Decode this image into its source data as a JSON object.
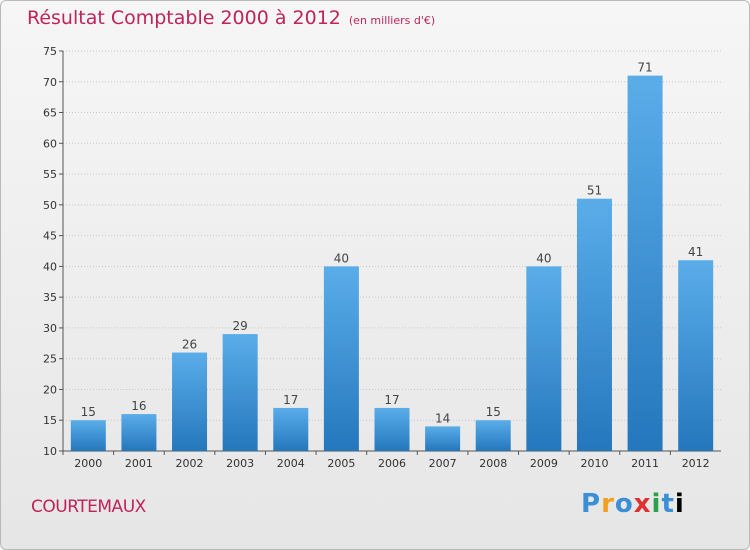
{
  "title": "Résultat Comptable 2000 à 2012",
  "unit": "(en milliers d'€)",
  "city": "COURTEMAUX",
  "logo": {
    "letters": [
      "P",
      "r",
      "o",
      "x",
      "i",
      "t",
      "i"
    ]
  },
  "colors": {
    "bar_light": "#5aade9",
    "bar_dark": "#2577bd",
    "title": "#c0235a",
    "grid": "#c8c8c8"
  },
  "chart_data": {
    "type": "bar",
    "title": "Résultat Comptable 2000 à 2012",
    "subtitle": "(en milliers d'€)",
    "xlabel": "",
    "ylabel": "",
    "categories": [
      "2000",
      "2001",
      "2002",
      "2003",
      "2004",
      "2005",
      "2006",
      "2007",
      "2008",
      "2009",
      "2010",
      "2011",
      "2012"
    ],
    "values": [
      15,
      16,
      26,
      29,
      17,
      40,
      17,
      14,
      15,
      40,
      51,
      71,
      41
    ],
    "ylim": [
      10,
      75
    ],
    "yticks": [
      10,
      15,
      20,
      25,
      30,
      35,
      40,
      45,
      50,
      55,
      60,
      65,
      70,
      75
    ],
    "grid": true
  }
}
